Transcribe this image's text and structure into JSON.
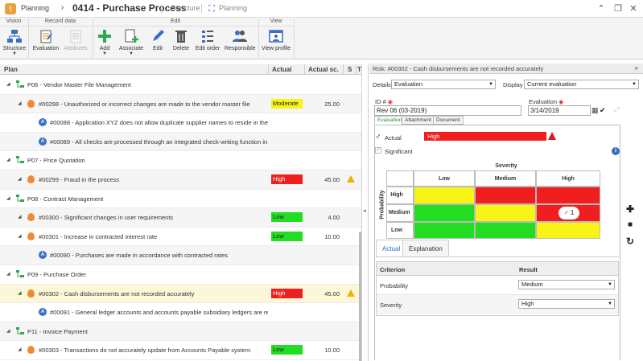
{
  "titlebar": {
    "app_name": "Planning",
    "title": "0414 - Purchase Process",
    "structure_label": "Structure",
    "planning_label": "Planning"
  },
  "toolbar": {
    "groups": {
      "vision": "Vision",
      "record_data": "Record data",
      "edit": "Edit",
      "view": "View"
    },
    "buttons": {
      "structure": "Structure",
      "evaluation": "Evaluation",
      "attributes": "Attributes",
      "add": "Add",
      "associate": "Associate",
      "edit": "Edit",
      "delete": "Delete",
      "edit_order": "Edit order",
      "responsible": "Responsible",
      "view_profile": "View profile"
    }
  },
  "grid": {
    "headers": {
      "plan": "Plan",
      "actual": "Actual",
      "actual_sc": "Actual sc.",
      "s": "S",
      "t": "T"
    },
    "rows": [
      {
        "type": "process",
        "text": "P06 - Vendor Master File Management"
      },
      {
        "type": "risk",
        "text": "#00298 - Unauthorized or incorrect changes are made to the vendor master file",
        "badge": "Moderate",
        "level": "moderate",
        "score": "25.00",
        "warn": false
      },
      {
        "type": "control",
        "text": "#00088 - Application XYZ does not allow duplicate supplier names to reside in the sy"
      },
      {
        "type": "control",
        "text": "#00089 - All checks are processed through an integrated check-writing function in Ap"
      },
      {
        "type": "process",
        "text": "P07 - Price Quotation"
      },
      {
        "type": "risk",
        "text": "#00299 - Fraud in the process",
        "badge": "High",
        "level": "high",
        "score": "45.00",
        "warn": true
      },
      {
        "type": "process",
        "text": "P08 - Contract Management"
      },
      {
        "type": "risk",
        "text": "#00300 - Significant changes in user requirements",
        "badge": "Low",
        "level": "low",
        "score": "4.00",
        "warn": false
      },
      {
        "type": "risk",
        "text": "#00301 - Increase in contracted interest rate",
        "badge": "Low",
        "level": "low",
        "score": "10.00",
        "warn": false
      },
      {
        "type": "control",
        "text": "#00090 - Purchases are made in accordance with contracted rates"
      },
      {
        "type": "process",
        "text": "P09 - Purchase Order"
      },
      {
        "type": "risk",
        "text": "#00302 - Cash disbursements are not recorded accurately",
        "badge": "High",
        "level": "high",
        "score": "45.00",
        "warn": true
      },
      {
        "type": "control",
        "text": "#00091 - General ledger accounts and accounts payable subsidiary ledgers are reco"
      },
      {
        "type": "process",
        "text": "P11 - Invoice Payment"
      },
      {
        "type": "risk",
        "text": "#00303 - Transactions do not accurately update from Accounts Payable system",
        "badge": "Low",
        "level": "low",
        "score": "10.00",
        "warn": false
      }
    ]
  },
  "panel": {
    "title": "Risk: #00302 - Cash disbursements are not recorded accurately",
    "details_label": "Details",
    "details_value": "Evaluation",
    "display_label": "Display",
    "display_value": "Current evaluation",
    "id_label": "ID #",
    "id_value": "Rev 06 (03-2019)",
    "evaluation_label": "Evaluation",
    "evaluation_value": "3/14/2019",
    "tabs": [
      "Evaluation",
      "Attachment",
      "Document"
    ],
    "actual_label": "Actual",
    "actual_value": "High",
    "significant_label": "Significant",
    "matrix": {
      "severity_label": "Severity",
      "probability_label": "Probability",
      "columns": [
        "Low",
        "Medium",
        "High"
      ],
      "rows": [
        "High",
        "Medium",
        "Low"
      ],
      "marker": "1"
    },
    "subtabs": [
      "Actual",
      "Explanation"
    ],
    "criteria": {
      "col_criterion": "Criterion",
      "col_result": "Result",
      "rows": [
        {
          "criterion": "Probability",
          "result": "Medium"
        },
        {
          "criterion": "Severity",
          "result": "High"
        }
      ]
    }
  },
  "colors": {
    "high": "#f01e1e",
    "medium": "#f8f416",
    "low": "#22dd22",
    "selected_row": "#fbf7d8"
  }
}
